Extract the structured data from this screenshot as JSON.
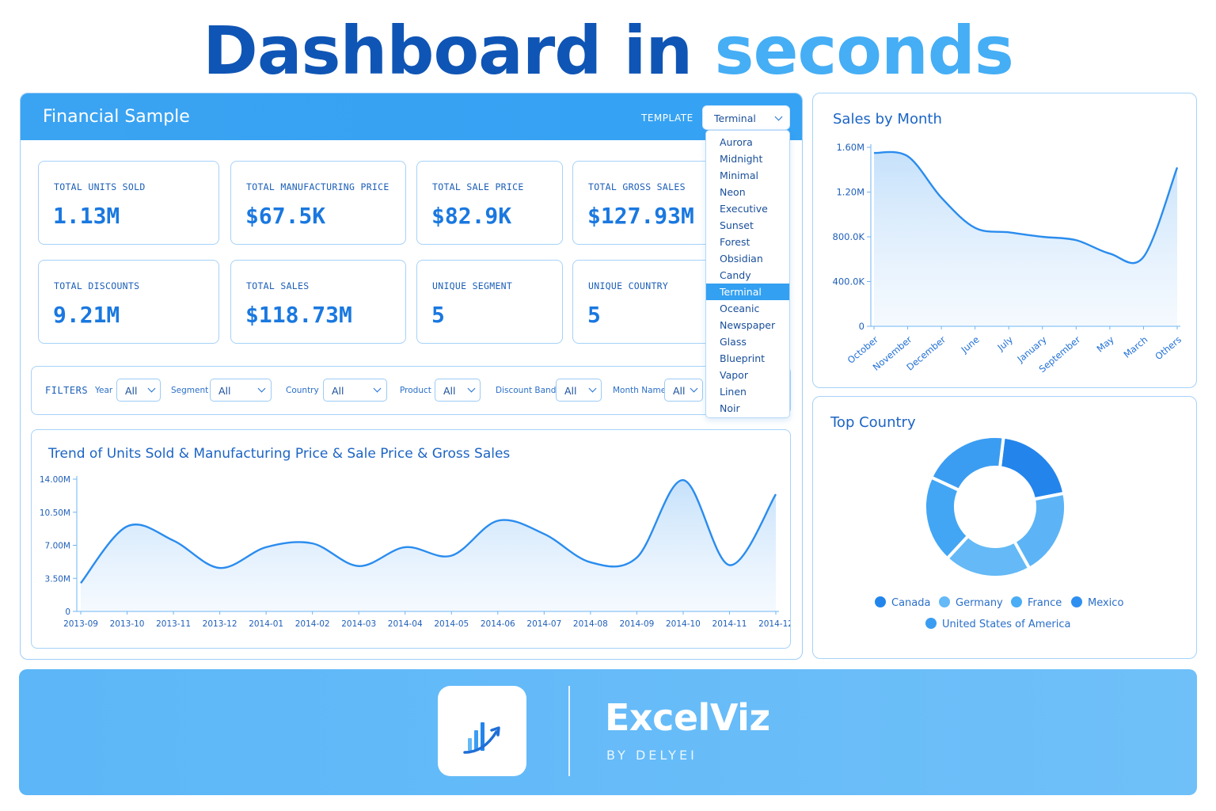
{
  "hero": {
    "word1": "Dashboard in",
    "word2": "seconds"
  },
  "panel": {
    "title": "Financial Sample",
    "template_label": "TEMPLATE",
    "template_value": "Terminal"
  },
  "template_options": [
    "Aurora",
    "Midnight",
    "Minimal",
    "Neon",
    "Executive",
    "Sunset",
    "Forest",
    "Obsidian",
    "Candy",
    "Terminal",
    "Oceanic",
    "Newspaper",
    "Glass",
    "Blueprint",
    "Vapor",
    "Linen",
    "Noir"
  ],
  "kpis": [
    {
      "label": "TOTAL UNITS SOLD",
      "value": "1.13M"
    },
    {
      "label": "TOTAL MANUFACTURING PRICE",
      "value": "$67.5K"
    },
    {
      "label": "TOTAL SALE PRICE",
      "value": "$82.9K"
    },
    {
      "label": "TOTAL GROSS SALES",
      "value": "$127.93M"
    },
    {
      "label": "TOTAL DISCOUNTS",
      "value": "9.21M"
    },
    {
      "label": "TOTAL SALES",
      "value": "$118.73M"
    },
    {
      "label": "UNIQUE SEGMENT",
      "value": "5"
    },
    {
      "label": "UNIQUE COUNTRY",
      "value": "5"
    }
  ],
  "filters": {
    "title": "FILTERS",
    "items": [
      {
        "label": "Year",
        "value": "All"
      },
      {
        "label": "Segment",
        "value": "All"
      },
      {
        "label": "Country",
        "value": "All"
      },
      {
        "label": "Product",
        "value": "All"
      },
      {
        "label": "Discount Band",
        "value": "All"
      },
      {
        "label": "Month Name",
        "value": "All"
      }
    ]
  },
  "colors": {
    "accent": "#35a2f3",
    "primary": "#1a78e0",
    "dark": "#0f55b5",
    "light": "#45aef5"
  },
  "chart_data": [
    {
      "type": "area",
      "title": "Trend of Units Sold & Manufacturing Price & Sale Price & Gross Sales",
      "categories": [
        "2013-09",
        "2013-10",
        "2013-11",
        "2013-12",
        "2014-01",
        "2014-02",
        "2014-03",
        "2014-04",
        "2014-05",
        "2014-06",
        "2014-07",
        "2014-08",
        "2014-09",
        "2014-10",
        "2014-11",
        "2014-12"
      ],
      "values": [
        3.0,
        9.0,
        7.5,
        4.6,
        6.8,
        7.2,
        4.8,
        6.8,
        5.9,
        9.6,
        8.2,
        5.2,
        5.7,
        13.9,
        4.9,
        12.4
      ],
      "value_unit": "M",
      "yticks": [
        "0",
        "3.50M",
        "7.00M",
        "10.50M",
        "14.00M"
      ],
      "ylim": [
        0,
        14
      ],
      "grid": false,
      "xlabel": "",
      "ylabel": ""
    },
    {
      "type": "area",
      "title": "Sales by Month",
      "categories": [
        "October",
        "November",
        "December",
        "June",
        "July",
        "January",
        "September",
        "May",
        "March",
        "Others"
      ],
      "values": [
        1.55,
        1.52,
        1.15,
        0.88,
        0.84,
        0.8,
        0.77,
        0.65,
        0.62,
        1.42
      ],
      "value_unit": "M",
      "yticks": [
        "0",
        "400.0K",
        "800.0K",
        "1.20M",
        "1.60M"
      ],
      "ylim": [
        0,
        1.6
      ],
      "grid": false,
      "xlabel": "",
      "ylabel": ""
    },
    {
      "type": "pie",
      "title": "Top Country",
      "categories": [
        "Canada",
        "Germany",
        "France",
        "Mexico",
        "United States of America"
      ],
      "values": [
        20,
        20,
        20,
        20,
        20
      ],
      "colors": [
        "#2385ec",
        "#64b9f6",
        "#4aadf5",
        "#2e8ff0",
        "#3b9df2"
      ],
      "legend": "bottom"
    }
  ],
  "footer": {
    "brand": "ExcelViz",
    "subtitle": "BY DELYEI"
  }
}
